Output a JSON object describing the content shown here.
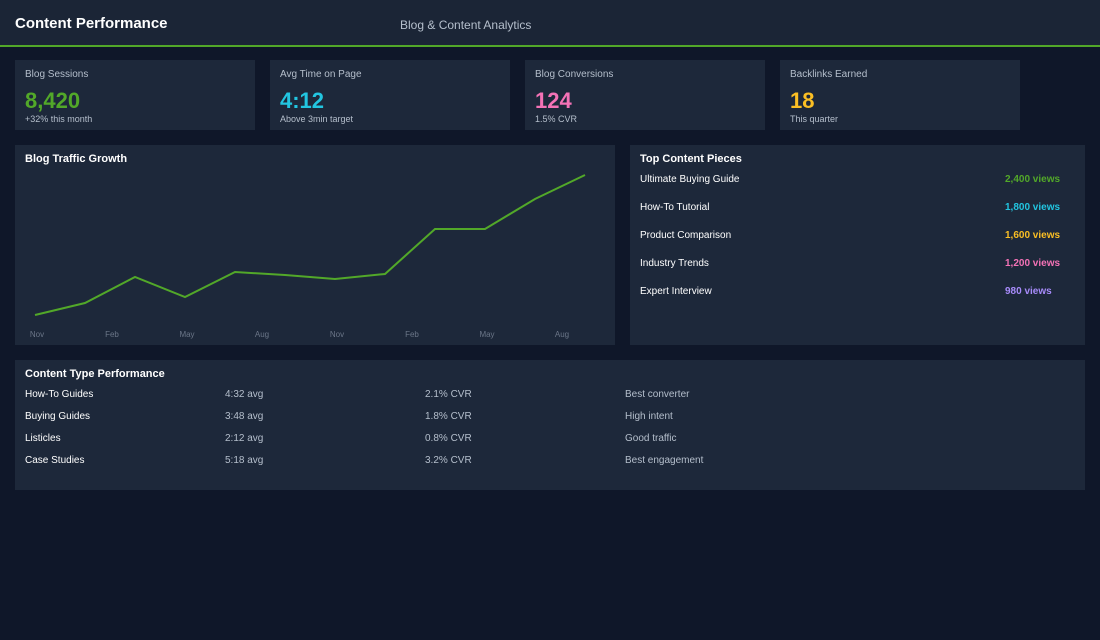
{
  "header": {
    "title": "Content Performance",
    "subtitle": "Blog & Content Analytics"
  },
  "kpis": [
    {
      "label": "Blog Sessions",
      "value": "8,420",
      "note": "+32% this month",
      "color": "#52a829"
    },
    {
      "label": "Avg Time on Page",
      "value": "4:12",
      "note": "Above 3min target",
      "color": "#22c5e0"
    },
    {
      "label": "Blog Conversions",
      "value": "124",
      "note": "1.5% CVR",
      "color": "#f472b6"
    },
    {
      "label": "Backlinks Earned",
      "value": "18",
      "note": "This quarter",
      "color": "#fbbf24"
    }
  ],
  "chart_data": {
    "type": "line",
    "title": "Blog Traffic Growth",
    "x_labels": [
      "Nov",
      "Feb",
      "May",
      "Aug",
      "Nov",
      "Feb",
      "May",
      "Aug"
    ],
    "series": [
      {
        "color": "#52a829",
        "values": [
          15,
          27,
          53,
          33,
          58,
          55,
          51,
          56,
          101,
          101,
          131,
          155
        ]
      }
    ]
  },
  "top_content": {
    "title": "Top Content Pieces",
    "items": [
      {
        "name": "Ultimate Buying Guide",
        "views": "2,400 views",
        "color": "#52a829"
      },
      {
        "name": "How-To Tutorial",
        "views": "1,800 views",
        "color": "#22c5e0"
      },
      {
        "name": "Product Comparison",
        "views": "1,600 views",
        "color": "#fbbf24"
      },
      {
        "name": "Industry Trends",
        "views": "1,200 views",
        "color": "#f472b6"
      },
      {
        "name": "Expert Interview",
        "views": "980 views",
        "color": "#a78bfa"
      }
    ]
  },
  "table": {
    "title": "Content Type Performance",
    "rows": [
      [
        "How-To Guides",
        "4:32 avg",
        "2.1% CVR",
        "Best converter"
      ],
      [
        "Buying Guides",
        "3:48 avg",
        "1.8% CVR",
        "High intent"
      ],
      [
        "Listicles",
        "2:12 avg",
        "0.8% CVR",
        "Good traffic"
      ],
      [
        "Case Studies",
        "5:18 avg",
        "3.2% CVR",
        "Best engagement"
      ]
    ]
  }
}
